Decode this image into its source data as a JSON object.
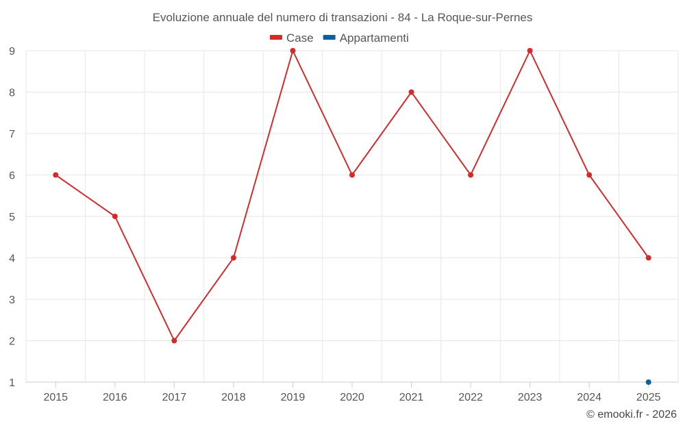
{
  "chart_data": {
    "type": "line",
    "title": "Evoluzione annuale del numero di transazioni - 84 - La Roque-sur-Pernes",
    "xlabel": "",
    "ylabel": "",
    "x": [
      "2015",
      "2016",
      "2017",
      "2018",
      "2019",
      "2020",
      "2021",
      "2022",
      "2023",
      "2024",
      "2025"
    ],
    "ylim": [
      1,
      9
    ],
    "yticks": [
      "1",
      "2",
      "3",
      "4",
      "5",
      "6",
      "7",
      "8",
      "9"
    ],
    "grid": true,
    "legend_position": "top-center",
    "series": [
      {
        "name": "Case",
        "color": "#d42a2a",
        "values": [
          6,
          5,
          2,
          4,
          9,
          6,
          8,
          6,
          9,
          6,
          4
        ]
      },
      {
        "name": "Appartamenti",
        "color": "#0d5fa0",
        "values": [
          null,
          null,
          null,
          null,
          null,
          null,
          null,
          null,
          null,
          null,
          1
        ]
      }
    ]
  },
  "credit": "© emooki.fr - 2026"
}
